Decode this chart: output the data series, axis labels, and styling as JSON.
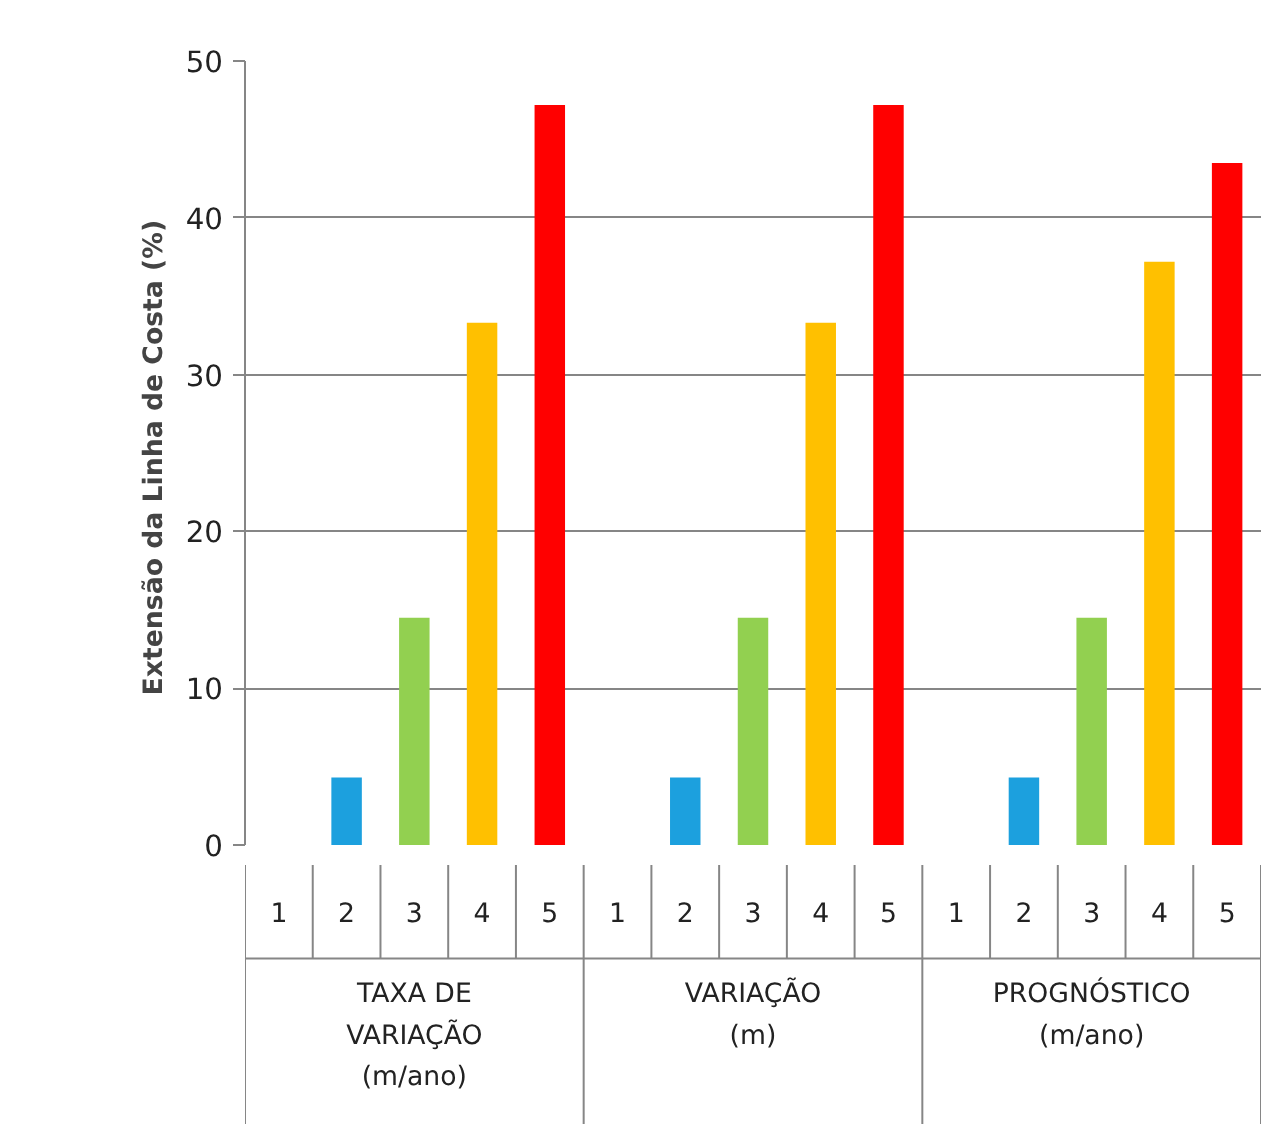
{
  "chart_data": {
    "type": "bar",
    "ylabel": "Extensão da Linha de Costa  (%)",
    "categories": [
      "1",
      "2",
      "3",
      "4",
      "5",
      "1",
      "2",
      "3",
      "4",
      "5",
      "1",
      "2",
      "3",
      "4",
      "5"
    ],
    "values": [
      null,
      4.3,
      14.5,
      33.3,
      47.2,
      null,
      4.3,
      14.5,
      33.3,
      47.2,
      null,
      4.3,
      14.5,
      37.2,
      43.5
    ],
    "colors": [
      null,
      "#1ca0de",
      "#92d050",
      "#ffc000",
      "#ff0000",
      null,
      "#1ca0de",
      "#92d050",
      "#ffc000",
      "#ff0000",
      null,
      "#1ca0de",
      "#92d050",
      "#ffc000",
      "#ff0000"
    ],
    "ylim": [
      0,
      50
    ],
    "yticks": [
      0,
      10,
      20,
      30,
      40,
      50
    ],
    "grid": "y",
    "annotations": [
      "TAXA DE VARIAÇÃO (m/ano)",
      "VARIAÇÃO (m)",
      "PROGNÓSTICO (m/ano)"
    ]
  }
}
